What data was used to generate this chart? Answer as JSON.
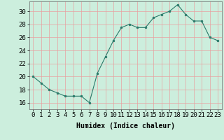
{
  "x": [
    0,
    1,
    2,
    3,
    4,
    5,
    6,
    7,
    8,
    9,
    10,
    11,
    12,
    13,
    14,
    15,
    16,
    17,
    18,
    19,
    20,
    21,
    22,
    23
  ],
  "y": [
    20,
    19,
    18,
    17.5,
    17,
    17,
    17,
    16,
    20.5,
    23,
    25.5,
    27.5,
    28,
    27.5,
    27.5,
    29,
    29.5,
    30,
    31,
    29.5,
    28.5,
    28.5,
    26,
    25.5
  ],
  "line_color": "#2a7a6a",
  "marker_color": "#2a7a6a",
  "bg_color": "#cceedd",
  "grid_color": "#e8a0a0",
  "xlabel": "Humidex (Indice chaleur)",
  "xlabel_fontsize": 7,
  "tick_fontsize": 6.5,
  "ylim": [
    15,
    31.5
  ],
  "yticks": [
    16,
    18,
    20,
    22,
    24,
    26,
    28,
    30
  ],
  "xlim": [
    -0.5,
    23.5
  ],
  "xticks": [
    0,
    1,
    2,
    3,
    4,
    5,
    6,
    7,
    8,
    9,
    10,
    11,
    12,
    13,
    14,
    15,
    16,
    17,
    18,
    19,
    20,
    21,
    22,
    23
  ]
}
